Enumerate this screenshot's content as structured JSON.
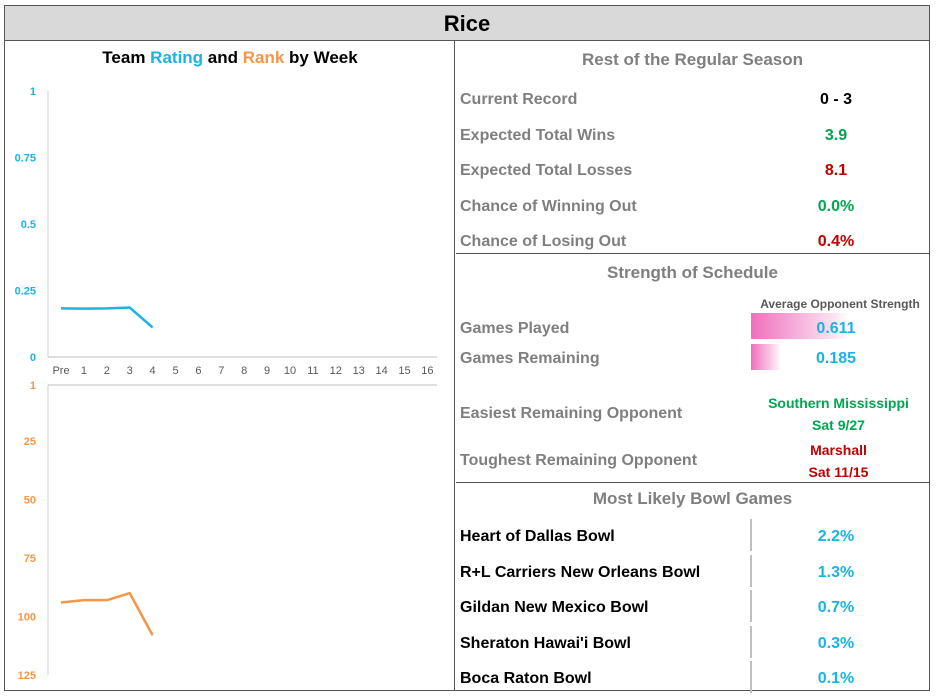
{
  "title": "Rice",
  "chart_data": {
    "type": "line",
    "title_parts": {
      "prefix": "Team ",
      "rating": "Rating",
      "middle": " and ",
      "rank": "Rank",
      "suffix": " by Week"
    },
    "categories": [
      "Pre",
      "1",
      "2",
      "3",
      "4",
      "5",
      "6",
      "7",
      "8",
      "9",
      "10",
      "11",
      "12",
      "13",
      "14",
      "15",
      "16"
    ],
    "rating": {
      "name": "Rating",
      "color": "#19b3e6",
      "ylim": [
        0,
        1
      ],
      "ticks": [
        "1",
        "0.75",
        "0.5",
        "0.25",
        "0"
      ],
      "tick_values": [
        1,
        0.75,
        0.5,
        0.25,
        0
      ],
      "values": [
        0.183,
        0.182,
        0.183,
        0.186,
        0.111
      ]
    },
    "rank": {
      "name": "Rank",
      "color": "#f79646",
      "ylim": [
        1,
        125
      ],
      "ticks": [
        "1",
        "25",
        "50",
        "75",
        "100",
        "125"
      ],
      "tick_values": [
        1,
        25,
        50,
        75,
        100,
        125
      ],
      "values": [
        94,
        93,
        93,
        90,
        108
      ]
    }
  },
  "rest_of_season": {
    "heading": "Rest of the Regular Season",
    "rows": [
      {
        "label": "Current Record",
        "value": "0 - 3"
      },
      {
        "label": "Expected Total Wins",
        "value": "3.9"
      },
      {
        "label": "Expected Total Losses",
        "value": "8.1"
      },
      {
        "label": "Chance of Winning Out",
        "value": "0.0%"
      },
      {
        "label": "Chance of Losing Out",
        "value": "0.4%"
      }
    ]
  },
  "schedule": {
    "heading": "Strength of Schedule",
    "column_head": "Average Opponent Strength",
    "games_played": {
      "label": "Games Played",
      "value": "0.611",
      "strength": 0.611
    },
    "games_remaining": {
      "label": "Games Remaining",
      "value": "0.185",
      "strength": 0.185
    },
    "easiest": {
      "label": "Easiest Remaining Opponent",
      "name": "Southern Mississippi",
      "date": "Sat 9/27"
    },
    "toughest": {
      "label": "Toughest Remaining Opponent",
      "name": "Marshall",
      "date": "Sat 11/15"
    }
  },
  "bowls": {
    "heading": "Most Likely Bowl Games",
    "items": [
      {
        "label": "Heart of Dallas Bowl",
        "value": "2.2%",
        "pct": 2.2
      },
      {
        "label": "R+L Carriers New Orleans Bowl",
        "value": "1.3%",
        "pct": 1.3
      },
      {
        "label": "Gildan New Mexico Bowl",
        "value": "0.7%",
        "pct": 0.7
      },
      {
        "label": "Sheraton Hawai'i Bowl",
        "value": "0.3%",
        "pct": 0.3
      },
      {
        "label": "Boca Raton Bowl",
        "value": "0.1%",
        "pct": 0.1
      }
    ]
  }
}
